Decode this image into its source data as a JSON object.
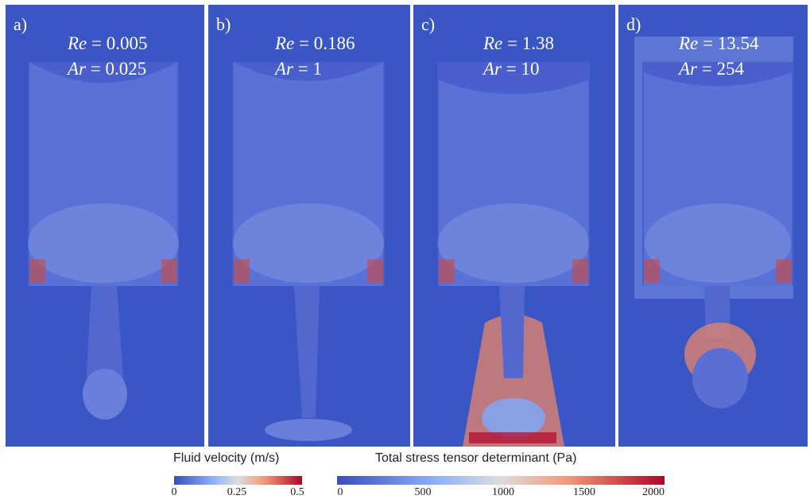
{
  "panels": [
    {
      "label": "a)",
      "re_sym": "Re",
      "re_val": "= 0.005",
      "ar_sym": "Ar",
      "ar_val": "= 0.025"
    },
    {
      "label": "b)",
      "re_sym": "Re",
      "re_val": "= 0.186",
      "ar_sym": "Ar",
      "ar_val": "= 1"
    },
    {
      "label": "c)",
      "re_sym": "Re",
      "re_val": "= 1.38",
      "ar_sym": "Ar",
      "ar_val": "= 10"
    },
    {
      "label": "d)",
      "re_sym": "Re",
      "re_val": "= 13.54",
      "ar_sym": "Ar",
      "ar_val": "= 254"
    }
  ],
  "legend_velocity": {
    "title": "Fluid velocity (m/s)",
    "ticks": [
      "0",
      "0.25",
      "0.5"
    ]
  },
  "legend_stress": {
    "title": "Total stress tensor determinant (Pa)",
    "ticks": [
      "0",
      "500",
      "1000",
      "1500",
      "2000"
    ]
  },
  "colors": {
    "low": "#3b4cc0",
    "mid": "#dddddd",
    "high": "#b40426",
    "background": "#3a56c4"
  }
}
